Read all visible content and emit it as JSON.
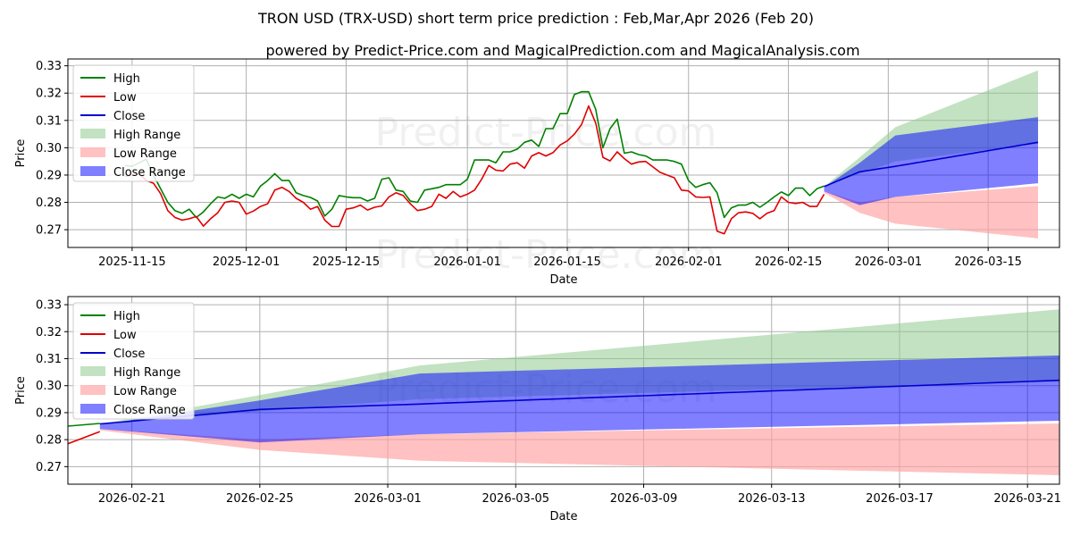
{
  "chart_data": {
    "type": "line",
    "title": "TRON USD (TRX-USD) short term price prediction : Feb,Mar,Apr 2026 (Feb 20)",
    "subtitle": "powered by Predict-Price.com and MagicalPrediction.com and MagicalAnalysis.com",
    "watermark": "Predict-Price.com",
    "colors": {
      "high": "#008000",
      "low": "#e00000",
      "close": "#0000cc",
      "high_range": "#8fcb8f",
      "low_range": "#ff9f9f",
      "close_range": "#0000ff",
      "grid": "#b0b0b0"
    },
    "legend": {
      "placement": "top-left",
      "entries": [
        "High",
        "Low",
        "Close",
        "High Range",
        "Low Range",
        "Close Range"
      ]
    },
    "panels": [
      {
        "name": "full-history",
        "xlabel": "Date",
        "ylabel": "Price",
        "xlim": [
          "2025-11-06",
          "2026-03-25"
        ],
        "ylim": [
          0.2635,
          0.3325
        ],
        "x_ticks": [
          "2025-11-15",
          "2025-12-01",
          "2025-12-15",
          "2026-01-01",
          "2026-01-15",
          "2026-02-01",
          "2026-02-15",
          "2026-03-01",
          "2026-03-15"
        ],
        "y_ticks": [
          0.27,
          0.28,
          0.29,
          0.3,
          0.31,
          0.32,
          0.33
        ],
        "y_tick_labels": [
          "0.27",
          "0.28",
          "0.29",
          "0.30",
          "0.31",
          "0.32",
          "0.33"
        ]
      },
      {
        "name": "prediction-zoom",
        "xlabel": "Date",
        "ylabel": "Price",
        "xlim": [
          "2026-02-19",
          "2026-03-22"
        ],
        "ylim": [
          0.2635,
          0.333
        ],
        "x_ticks": [
          "2026-02-21",
          "2026-02-25",
          "2026-03-01",
          "2026-03-05",
          "2026-03-09",
          "2026-03-13",
          "2026-03-17",
          "2026-03-21"
        ],
        "y_ticks": [
          0.27,
          0.28,
          0.29,
          0.3,
          0.31,
          0.32,
          0.33
        ],
        "y_tick_labels": [
          "0.27",
          "0.28",
          "0.29",
          "0.30",
          "0.31",
          "0.32",
          "0.33"
        ]
      }
    ],
    "history_start": "2025-11-14",
    "history_high": [
      0.2935,
      0.2932,
      0.2945,
      0.2958,
      0.29,
      0.285,
      0.28,
      0.277,
      0.276,
      0.2775,
      0.2745,
      0.2765,
      0.2795,
      0.282,
      0.2815,
      0.283,
      0.2815,
      0.283,
      0.282,
      0.286,
      0.288,
      0.2905,
      0.288,
      0.288,
      0.2835,
      0.2825,
      0.2818,
      0.2805,
      0.275,
      0.2775,
      0.2825,
      0.282,
      0.2817,
      0.2817,
      0.2805,
      0.2815,
      0.2885,
      0.289,
      0.2845,
      0.284,
      0.2805,
      0.28,
      0.2845,
      0.285,
      0.2855,
      0.2865,
      0.2865,
      0.2865,
      0.2885,
      0.2955,
      0.2955,
      0.2955,
      0.2945,
      0.2985,
      0.2985,
      0.2995,
      0.302,
      0.3028,
      0.3005,
      0.307,
      0.307,
      0.3125,
      0.3125,
      0.3195,
      0.3205,
      0.3205,
      0.314,
      0.3,
      0.307,
      0.3105,
      0.298,
      0.2985,
      0.2975,
      0.297,
      0.2955,
      0.2955,
      0.2955,
      0.295,
      0.294,
      0.288,
      0.2855,
      0.2865,
      0.2872,
      0.2835,
      0.2745,
      0.278,
      0.279,
      0.279,
      0.28,
      0.2782,
      0.28,
      0.282,
      0.2838,
      0.2825,
      0.2852,
      0.2852,
      0.2825,
      0.285,
      0.286
    ],
    "history_low": [
      0.2895,
      0.29,
      0.2905,
      0.288,
      0.287,
      0.2832,
      0.277,
      0.2745,
      0.2735,
      0.274,
      0.2748,
      0.2713,
      0.274,
      0.2762,
      0.28,
      0.2805,
      0.28,
      0.2757,
      0.2768,
      0.2785,
      0.2795,
      0.2845,
      0.2855,
      0.284,
      0.2815,
      0.28,
      0.2775,
      0.2785,
      0.2735,
      0.2712,
      0.2712,
      0.2775,
      0.278,
      0.279,
      0.2772,
      0.2782,
      0.2787,
      0.282,
      0.2835,
      0.2825,
      0.2795,
      0.277,
      0.2775,
      0.2785,
      0.283,
      0.2815,
      0.284,
      0.282,
      0.283,
      0.2845,
      0.2885,
      0.2935,
      0.2918,
      0.2915,
      0.294,
      0.2945,
      0.2925,
      0.297,
      0.2982,
      0.297,
      0.2982,
      0.301,
      0.3025,
      0.305,
      0.3085,
      0.3153,
      0.309,
      0.2965,
      0.2952,
      0.2985,
      0.296,
      0.294,
      0.2948,
      0.295,
      0.293,
      0.291,
      0.29,
      0.289,
      0.2845,
      0.2842,
      0.282,
      0.2818,
      0.282,
      0.2695,
      0.2685,
      0.274,
      0.2762,
      0.2765,
      0.276,
      0.274,
      0.276,
      0.277,
      0.282,
      0.28,
      0.2796,
      0.28,
      0.2785,
      0.2785,
      0.283
    ],
    "forecast_x": [
      "2026-02-20",
      "2026-02-25",
      "2026-03-02",
      "2026-03-22"
    ],
    "forecast_close": [
      0.2858,
      0.2912,
      0.2932,
      0.302
    ],
    "high_range_upper": [
      0.2858,
      0.2965,
      0.3075,
      0.3283
    ],
    "high_range_lower": [
      0.2858,
      0.2905,
      0.295,
      0.3015
    ],
    "close_range_upper": [
      0.2855,
      0.2945,
      0.3045,
      0.3112
    ],
    "close_range_lower": [
      0.284,
      0.279,
      0.282,
      0.287
    ],
    "low_range_upper": [
      0.284,
      0.28,
      0.282,
      0.286
    ],
    "low_range_lower": [
      0.2835,
      0.2762,
      0.2722,
      0.2668
    ]
  }
}
